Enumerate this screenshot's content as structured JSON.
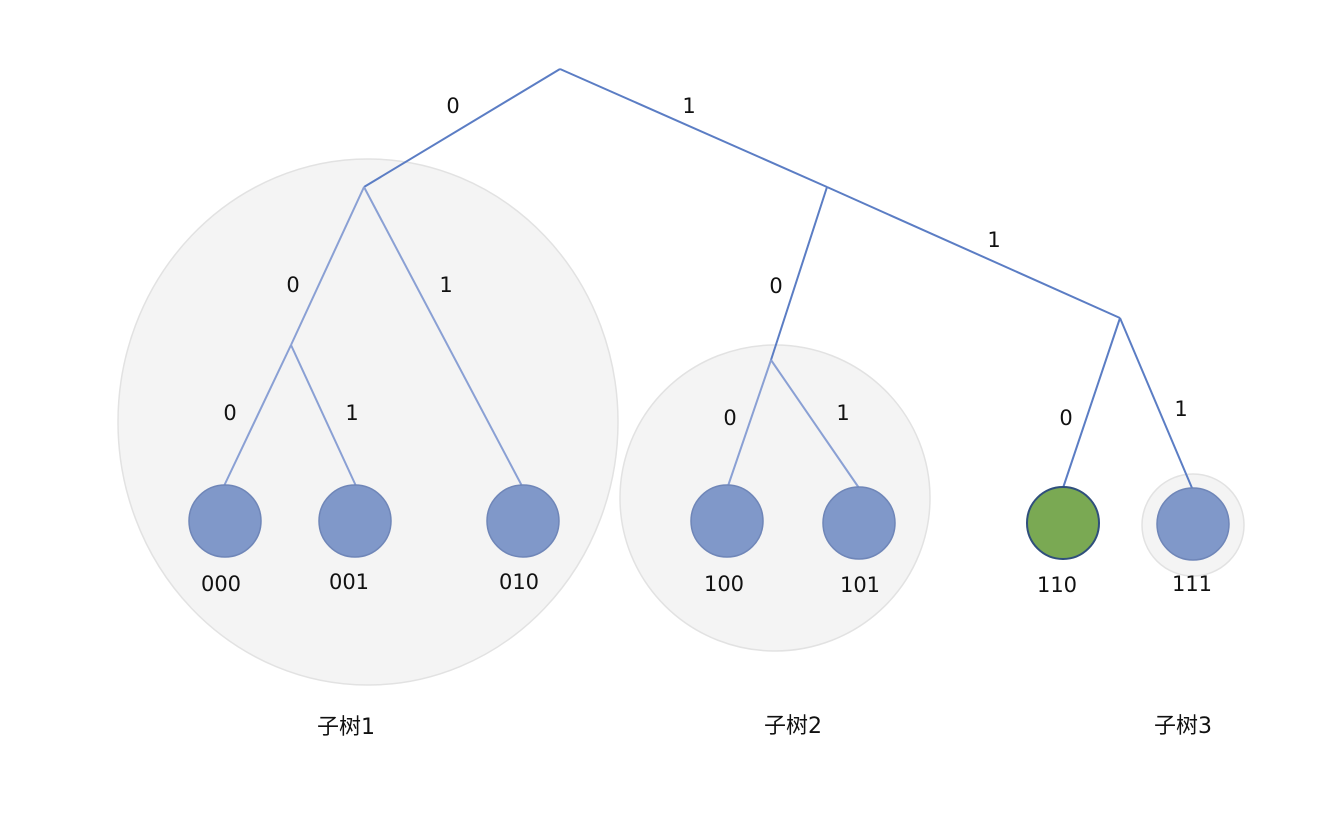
{
  "colors": {
    "edge": "#5b7dc4",
    "edge_light": "#8aa0d4",
    "leaf_fill": "#8098c9",
    "leaf_highlight_fill": "#7aa953",
    "subtree_bg": "#f4f4f4"
  },
  "edges": {
    "root_left": "0",
    "root_right": "1",
    "n0_left": "0",
    "n0_right": "1",
    "n00_left": "0",
    "n00_right": "1",
    "n1_left": "0",
    "n1_right": "1",
    "n10_left": "0",
    "n10_right": "1",
    "n11_left": "0",
    "n11_right": "1"
  },
  "leaves": {
    "l000": "000",
    "l001": "001",
    "l010": "010",
    "l100": "100",
    "l101": "101",
    "l110": "110",
    "l111": "111"
  },
  "subtrees": {
    "s1": "子树1",
    "s2": "子树2",
    "s3": "子树3"
  }
}
